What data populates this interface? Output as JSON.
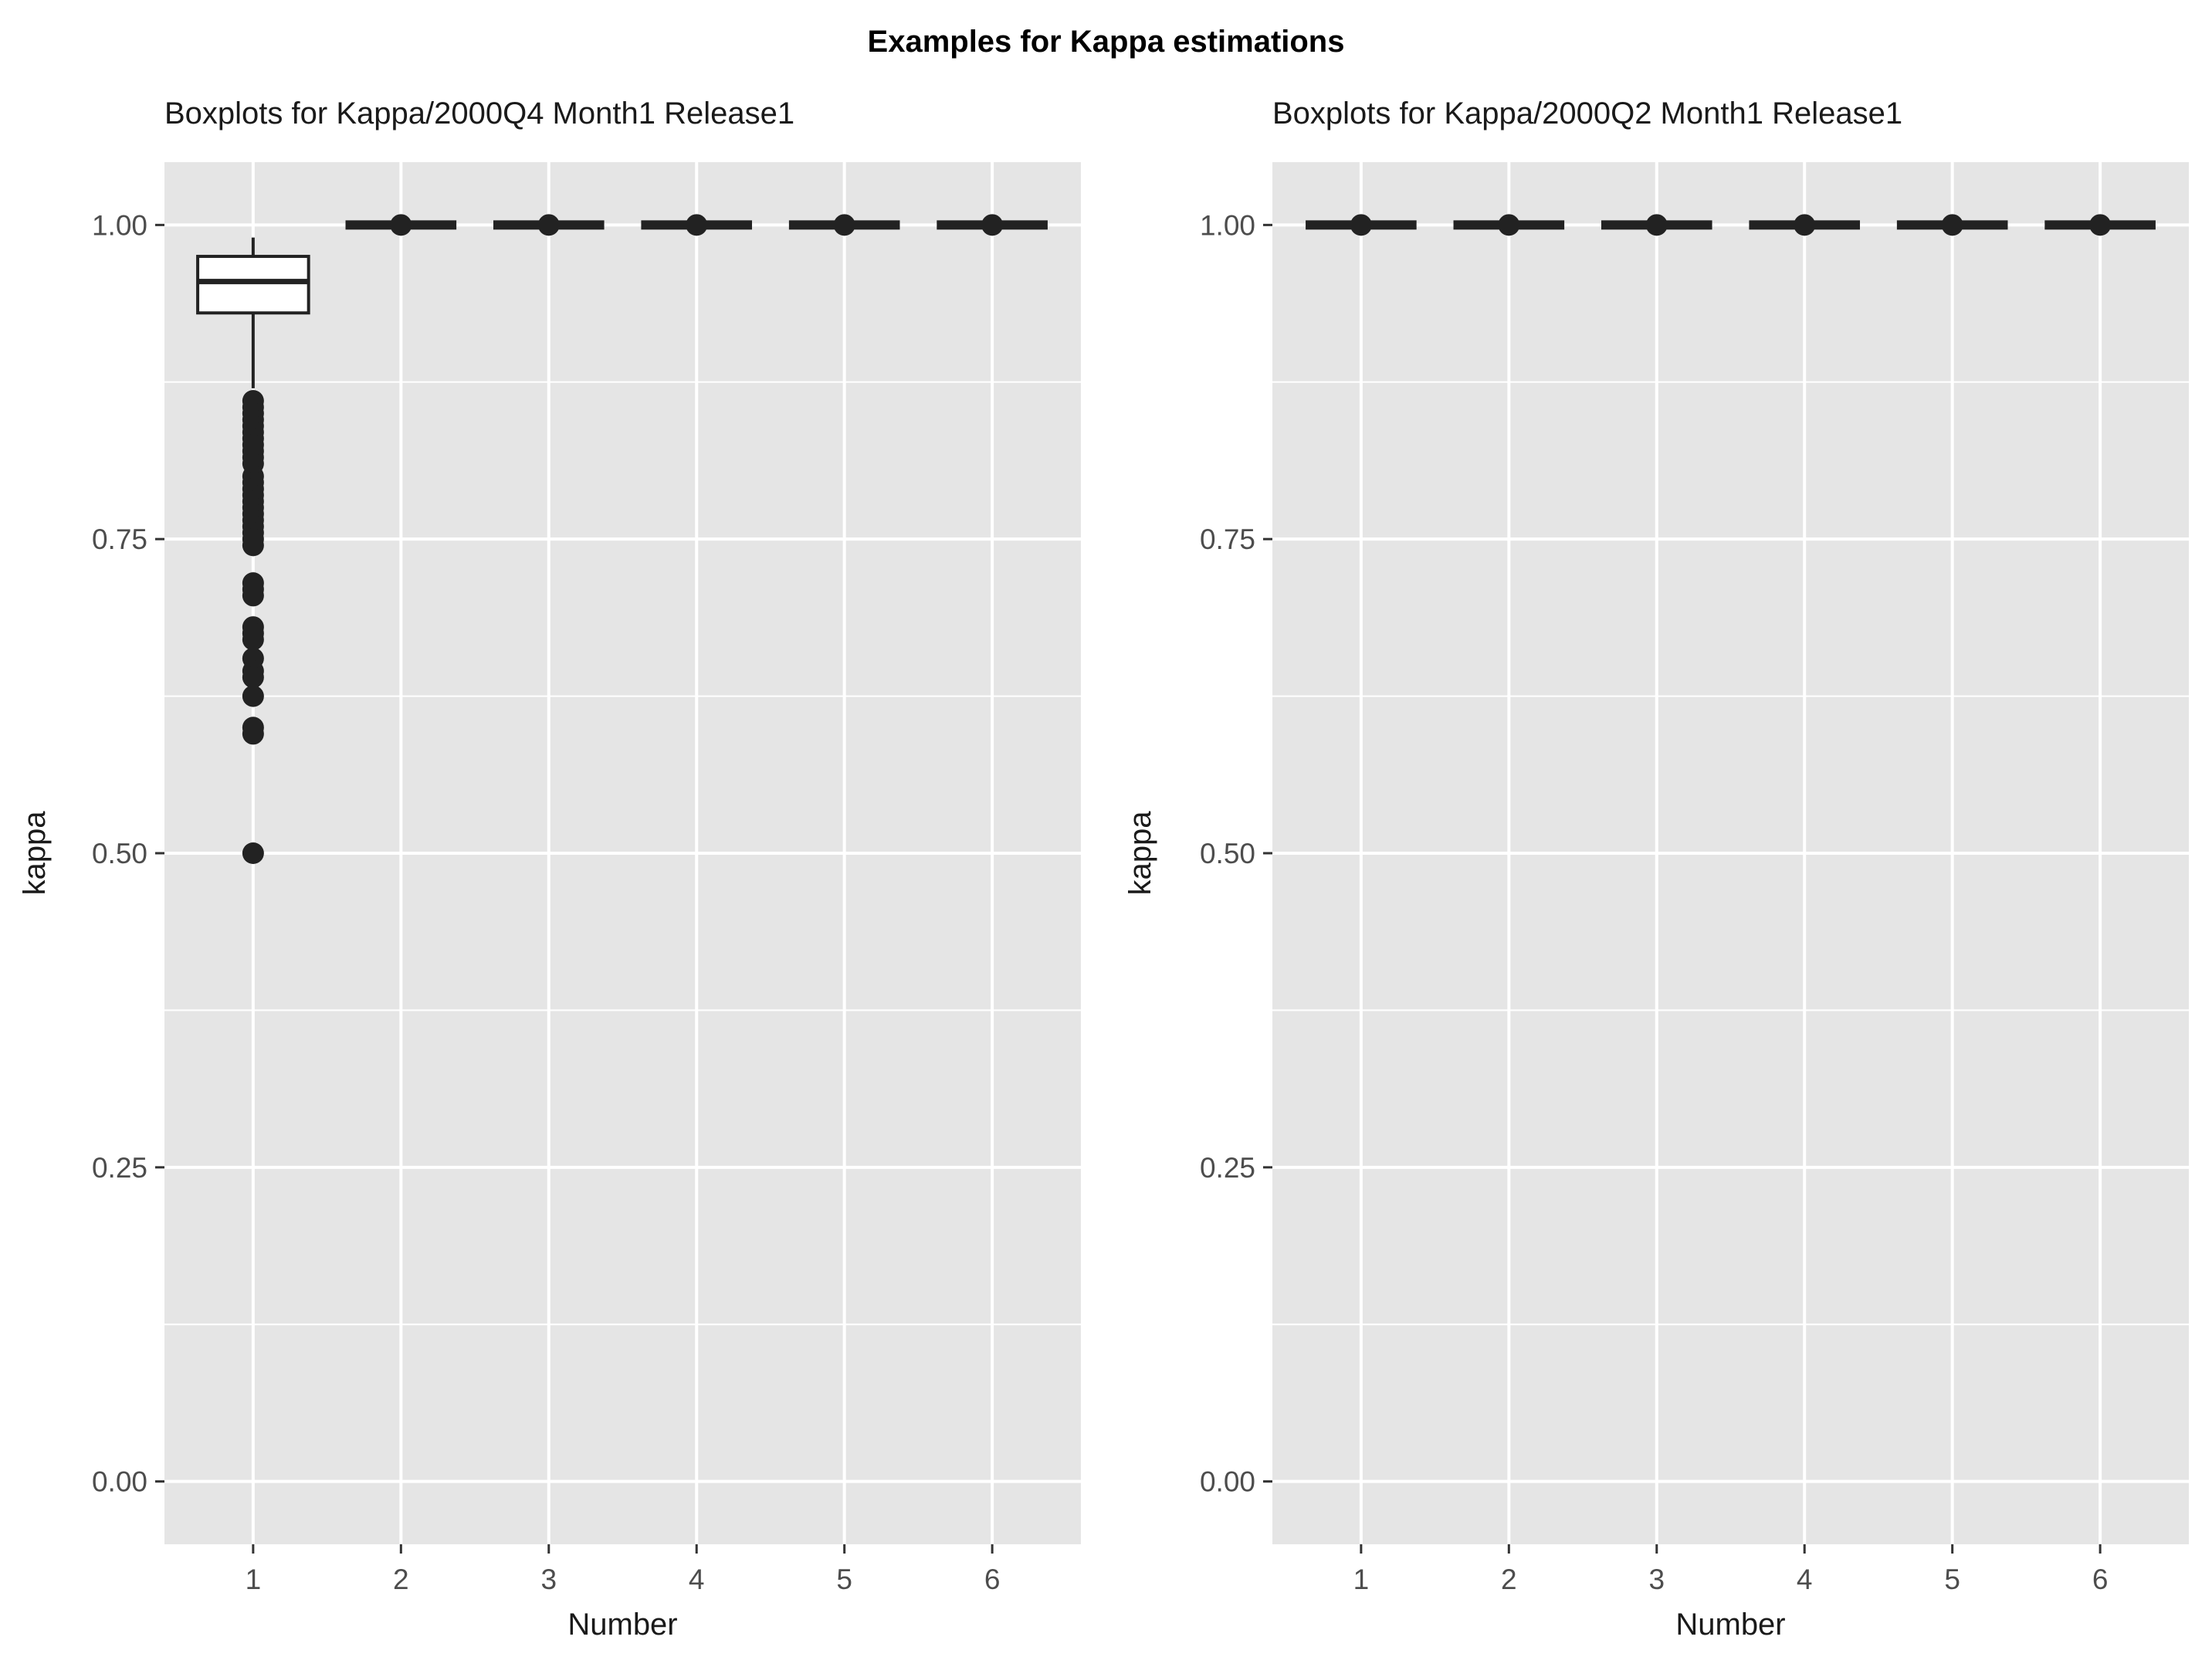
{
  "figure": {
    "title": "Examples for Kappa estimations"
  },
  "colors": {
    "panel_bg": "#e5e5e5",
    "grid": "#ffffff",
    "box_stroke": "#222222",
    "box_fill": "#ffffff",
    "point": "#222222",
    "tick_text": "#4d4d4d"
  },
  "chart_data": [
    {
      "type": "box",
      "title": "Boxplots for Kappa/2000Q4 Month1 Release1",
      "xlabel": "Number",
      "ylabel": "kappa",
      "categories": [
        "1",
        "2",
        "3",
        "4",
        "5",
        "6"
      ],
      "ylim": [
        -0.05,
        1.05
      ],
      "yticks": [
        0.0,
        0.25,
        0.5,
        0.75,
        1.0
      ],
      "ytick_labels": [
        "0.00",
        "0.25",
        "0.50",
        "0.75",
        "1.00"
      ],
      "grid": true,
      "boxes": [
        {
          "category": "1",
          "whisker_low": 0.87,
          "q1": 0.93,
          "median": 0.955,
          "q3": 0.975,
          "whisker_high": 0.99,
          "outliers": [
            0.86,
            0.855,
            0.85,
            0.845,
            0.84,
            0.835,
            0.83,
            0.825,
            0.82,
            0.815,
            0.81,
            0.8,
            0.795,
            0.79,
            0.785,
            0.78,
            0.775,
            0.77,
            0.765,
            0.76,
            0.755,
            0.75,
            0.745,
            0.715,
            0.71,
            0.705,
            0.68,
            0.675,
            0.67,
            0.655,
            0.645,
            0.64,
            0.625,
            0.6,
            0.595,
            0.5
          ]
        },
        {
          "category": "2",
          "whisker_low": 1.0,
          "q1": 1.0,
          "median": 1.0,
          "q3": 1.0,
          "whisker_high": 1.0,
          "outliers": [
            1.0
          ]
        },
        {
          "category": "3",
          "whisker_low": 1.0,
          "q1": 1.0,
          "median": 1.0,
          "q3": 1.0,
          "whisker_high": 1.0,
          "outliers": [
            1.0
          ]
        },
        {
          "category": "4",
          "whisker_low": 1.0,
          "q1": 1.0,
          "median": 1.0,
          "q3": 1.0,
          "whisker_high": 1.0,
          "outliers": [
            1.0
          ]
        },
        {
          "category": "5",
          "whisker_low": 1.0,
          "q1": 1.0,
          "median": 1.0,
          "q3": 1.0,
          "whisker_high": 1.0,
          "outliers": [
            1.0
          ]
        },
        {
          "category": "6",
          "whisker_low": 1.0,
          "q1": 1.0,
          "median": 1.0,
          "q3": 1.0,
          "whisker_high": 1.0,
          "outliers": [
            1.0
          ]
        }
      ]
    },
    {
      "type": "box",
      "title": "Boxplots for Kappa/2000Q2 Month1 Release1",
      "xlabel": "Number",
      "ylabel": "kappa",
      "categories": [
        "1",
        "2",
        "3",
        "4",
        "5",
        "6"
      ],
      "ylim": [
        -0.05,
        1.05
      ],
      "yticks": [
        0.0,
        0.25,
        0.5,
        0.75,
        1.0
      ],
      "ytick_labels": [
        "0.00",
        "0.25",
        "0.50",
        "0.75",
        "1.00"
      ],
      "grid": true,
      "boxes": [
        {
          "category": "1",
          "whisker_low": 1.0,
          "q1": 1.0,
          "median": 1.0,
          "q3": 1.0,
          "whisker_high": 1.0,
          "outliers": [
            1.0
          ]
        },
        {
          "category": "2",
          "whisker_low": 1.0,
          "q1": 1.0,
          "median": 1.0,
          "q3": 1.0,
          "whisker_high": 1.0,
          "outliers": [
            1.0
          ]
        },
        {
          "category": "3",
          "whisker_low": 1.0,
          "q1": 1.0,
          "median": 1.0,
          "q3": 1.0,
          "whisker_high": 1.0,
          "outliers": [
            1.0
          ]
        },
        {
          "category": "4",
          "whisker_low": 1.0,
          "q1": 1.0,
          "median": 1.0,
          "q3": 1.0,
          "whisker_high": 1.0,
          "outliers": [
            1.0
          ]
        },
        {
          "category": "5",
          "whisker_low": 1.0,
          "q1": 1.0,
          "median": 1.0,
          "q3": 1.0,
          "whisker_high": 1.0,
          "outliers": [
            1.0
          ]
        },
        {
          "category": "6",
          "whisker_low": 1.0,
          "q1": 1.0,
          "median": 1.0,
          "q3": 1.0,
          "whisker_high": 1.0,
          "outliers": [
            1.0
          ]
        }
      ]
    }
  ]
}
